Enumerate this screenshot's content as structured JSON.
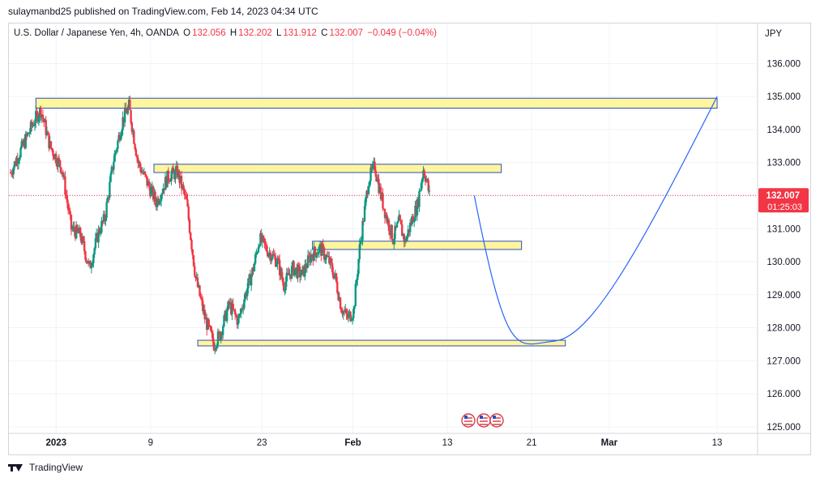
{
  "header": {
    "published_text": "sulaymanbd25 published on TradingView.com, Feb 14, 2023 04:34 UTC"
  },
  "legend": {
    "symbol": "U.S. Dollar / Japanese Yen, 4h, OANDA",
    "open_label": "O",
    "open": "132.056",
    "high_label": "H",
    "high": "132.202",
    "low_label": "L",
    "low": "131.912",
    "close_label": "C",
    "close": "132.007",
    "change": "−0.049 (−0.04%)"
  },
  "footer": {
    "brand": "TradingView"
  },
  "colors": {
    "up": "#089981",
    "down": "#f23645",
    "zone_fill": "#fff59d",
    "zone_border": "#2a4fbf",
    "projection": "#2962ff",
    "price_tag": "#f23645"
  },
  "chart_data": {
    "type": "candlestick",
    "symbol": "USDJPY",
    "timeframe": "4h",
    "currency": "JPY",
    "y_ticks": [
      "136.000",
      "135.000",
      "134.000",
      "133.000",
      "132.000",
      "131.000",
      "130.000",
      "129.000",
      "128.000",
      "127.000",
      "126.000",
      "125.000"
    ],
    "ylim": [
      124.8,
      136.6
    ],
    "x_ticks": [
      "2023",
      "9",
      "23",
      "Feb",
      "13",
      "21",
      "Mar",
      "13"
    ],
    "last_price": "132.007",
    "countdown": "01:25:03",
    "price_path": [
      [
        0,
        132.7
      ],
      [
        4,
        133.5
      ],
      [
        8,
        134.3
      ],
      [
        10,
        134.6
      ],
      [
        13,
        133.5
      ],
      [
        17,
        132.8
      ],
      [
        20,
        131.0
      ],
      [
        23,
        130.8
      ],
      [
        26,
        129.8
      ],
      [
        29,
        130.9
      ],
      [
        31,
        131.3
      ],
      [
        34,
        133.1
      ],
      [
        37,
        134.3
      ],
      [
        39,
        134.7
      ],
      [
        42,
        133.0
      ],
      [
        45,
        132.4
      ],
      [
        48,
        131.8
      ],
      [
        52,
        132.6
      ],
      [
        55,
        132.7
      ],
      [
        58,
        131.8
      ],
      [
        61,
        129.5
      ],
      [
        64,
        128.3
      ],
      [
        67,
        127.5
      ],
      [
        69,
        127.8
      ],
      [
        72,
        128.7
      ],
      [
        75,
        128.2
      ],
      [
        77,
        128.9
      ],
      [
        80,
        129.8
      ],
      [
        82,
        130.7
      ],
      [
        85,
        130.3
      ],
      [
        88,
        130.0
      ],
      [
        90,
        129.3
      ],
      [
        93,
        129.8
      ],
      [
        96,
        129.6
      ],
      [
        99,
        130.2
      ],
      [
        102,
        130.4
      ],
      [
        105,
        130.0
      ],
      [
        107,
        129.5
      ],
      [
        109,
        128.6
      ],
      [
        111,
        128.3
      ],
      [
        113,
        128.5
      ],
      [
        115,
        130.4
      ],
      [
        118,
        132.5
      ],
      [
        120,
        132.9
      ],
      [
        122,
        132.0
      ],
      [
        124,
        131.3
      ],
      [
        126,
        130.7
      ],
      [
        128,
        131.2
      ],
      [
        130,
        130.6
      ],
      [
        132,
        131.2
      ],
      [
        134,
        131.7
      ],
      [
        136,
        132.8
      ],
      [
        137,
        132.5
      ],
      [
        138,
        132.0
      ]
    ],
    "projection": [
      [
        138,
        132.0
      ],
      [
        148,
        127.8
      ],
      [
        162,
        127.6
      ],
      [
        210,
        135.0
      ]
    ],
    "zones": [
      {
        "from": 8,
        "to": 210,
        "top": 134.95,
        "bottom": 134.65
      },
      {
        "from": 43,
        "to": 146,
        "top": 132.95,
        "bottom": 132.7
      },
      {
        "from": 90,
        "to": 152,
        "top": 130.62,
        "bottom": 130.37
      },
      {
        "from": 56,
        "to": 165,
        "top": 127.62,
        "bottom": 127.45
      }
    ],
    "x_domain": [
      0,
      222
    ]
  }
}
